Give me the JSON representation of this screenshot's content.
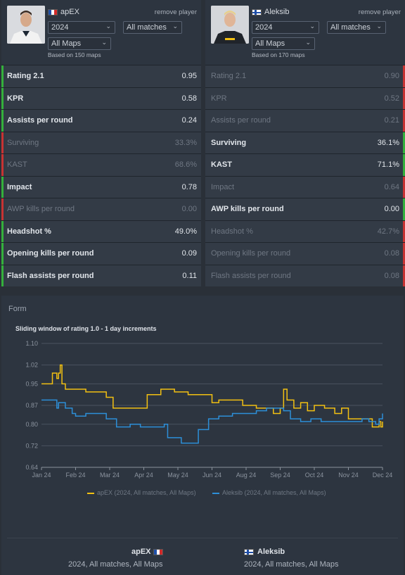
{
  "colors": {
    "win": "#34b03c",
    "lose": "#c73333",
    "series1": "#f2c012",
    "series2": "#2d8fd8"
  },
  "players": [
    {
      "name": "apEX",
      "flag": "france-flag",
      "remove": "remove player",
      "year": "2024",
      "matches": "All matches",
      "maps": "All Maps",
      "based": "Based on 150 maps",
      "stats": [
        {
          "label": "Rating 2.1",
          "value": "0.95",
          "win": true
        },
        {
          "label": "KPR",
          "value": "0.58",
          "win": true
        },
        {
          "label": "Assists per round",
          "value": "0.24",
          "win": true
        },
        {
          "label": "Surviving",
          "value": "33.3%",
          "win": false
        },
        {
          "label": "KAST",
          "value": "68.6%",
          "win": false
        },
        {
          "label": "Impact",
          "value": "0.78",
          "win": true
        },
        {
          "label": "AWP kills per round",
          "value": "0.00",
          "win": false
        },
        {
          "label": "Headshot %",
          "value": "49.0%",
          "win": true
        },
        {
          "label": "Opening kills per round",
          "value": "0.09",
          "win": true
        },
        {
          "label": "Flash assists per round",
          "value": "0.11",
          "win": true
        }
      ]
    },
    {
      "name": "Aleksib",
      "flag": "finland-flag",
      "remove": "remove player",
      "year": "2024",
      "matches": "All matches",
      "maps": "All Maps",
      "based": "Based on 170 maps",
      "stats": [
        {
          "label": "Rating 2.1",
          "value": "0.90",
          "win": false
        },
        {
          "label": "KPR",
          "value": "0.52",
          "win": false
        },
        {
          "label": "Assists per round",
          "value": "0.21",
          "win": false
        },
        {
          "label": "Surviving",
          "value": "36.1%",
          "win": true
        },
        {
          "label": "KAST",
          "value": "71.1%",
          "win": true
        },
        {
          "label": "Impact",
          "value": "0.64",
          "win": false
        },
        {
          "label": "AWP kills per round",
          "value": "0.00",
          "win": true
        },
        {
          "label": "Headshot %",
          "value": "42.7%",
          "win": false
        },
        {
          "label": "Opening kills per round",
          "value": "0.08",
          "win": false
        },
        {
          "label": "Flash assists per round",
          "value": "0.08",
          "win": false
        }
      ]
    }
  ],
  "form": {
    "title": "Form",
    "chart_title": "Sliding window of rating 1.0 - 1 day increments",
    "legend": [
      "apEX (2024, All matches, All Maps)",
      "Aleksib (2024, All matches, All Maps)"
    ],
    "footer": [
      {
        "name": "apEX",
        "sub": "2024, All matches, All Maps"
      },
      {
        "name": "Aleksib",
        "sub": "2024, All matches, All Maps"
      }
    ]
  },
  "chart_data": {
    "type": "line",
    "title": "Sliding window of rating 1.0 - 1 day increments",
    "xlabel": "",
    "ylabel": "",
    "x_ticks": [
      "Jan 24",
      "Feb 24",
      "Mar 24",
      "Apr 24",
      "May 24",
      "Jun 24",
      "Aug 24",
      "Sep 24",
      "Oct 24",
      "Nov 24",
      "Dec 24"
    ],
    "y_ticks": [
      "1.10",
      "1.02",
      "0.95",
      "0.87",
      "0.80",
      "0.72",
      "0.64"
    ],
    "ylim": [
      0.64,
      1.1
    ],
    "grid": true,
    "legend_position": "bottom",
    "series": [
      {
        "name": "apEX (2024, All matches, All Maps)",
        "points": [
          [
            0.0,
            0.95
          ],
          [
            0.3,
            0.95
          ],
          [
            0.32,
            0.99
          ],
          [
            0.4,
            0.99
          ],
          [
            0.45,
            0.97
          ],
          [
            0.5,
            0.99
          ],
          [
            0.55,
            1.02
          ],
          [
            0.6,
            0.95
          ],
          [
            0.7,
            0.93
          ],
          [
            1.0,
            0.93
          ],
          [
            1.3,
            0.92
          ],
          [
            1.7,
            0.92
          ],
          [
            1.9,
            0.9
          ],
          [
            2.1,
            0.86
          ],
          [
            2.6,
            0.86
          ],
          [
            3.0,
            0.86
          ],
          [
            3.1,
            0.91
          ],
          [
            3.5,
            0.93
          ],
          [
            3.9,
            0.92
          ],
          [
            4.3,
            0.91
          ],
          [
            4.7,
            0.91
          ],
          [
            5.0,
            0.88
          ],
          [
            5.2,
            0.89
          ],
          [
            5.5,
            0.89
          ],
          [
            5.9,
            0.87
          ],
          [
            6.0,
            0.87
          ],
          [
            6.3,
            0.86
          ],
          [
            6.6,
            0.86
          ],
          [
            6.8,
            0.84
          ],
          [
            7.0,
            0.86
          ],
          [
            7.1,
            0.93
          ],
          [
            7.2,
            0.89
          ],
          [
            7.4,
            0.86
          ],
          [
            7.6,
            0.88
          ],
          [
            7.8,
            0.85
          ],
          [
            8.0,
            0.87
          ],
          [
            8.3,
            0.86
          ],
          [
            8.5,
            0.86
          ],
          [
            8.6,
            0.84
          ],
          [
            8.8,
            0.86
          ],
          [
            9.0,
            0.82
          ],
          [
            9.6,
            0.82
          ],
          [
            9.7,
            0.79
          ],
          [
            9.9,
            0.81
          ],
          [
            9.95,
            0.79
          ],
          [
            10.0,
            0.81
          ]
        ]
      },
      {
        "name": "Aleksib (2024, All matches, All Maps)",
        "points": [
          [
            0.0,
            0.89
          ],
          [
            0.4,
            0.89
          ],
          [
            0.45,
            0.86
          ],
          [
            0.5,
            0.88
          ],
          [
            0.7,
            0.86
          ],
          [
            0.9,
            0.84
          ],
          [
            1.0,
            0.83
          ],
          [
            1.3,
            0.84
          ],
          [
            1.6,
            0.84
          ],
          [
            1.9,
            0.82
          ],
          [
            2.2,
            0.79
          ],
          [
            2.6,
            0.8
          ],
          [
            2.9,
            0.79
          ],
          [
            3.2,
            0.79
          ],
          [
            3.6,
            0.8
          ],
          [
            3.7,
            0.75
          ],
          [
            4.1,
            0.73
          ],
          [
            4.4,
            0.73
          ],
          [
            4.6,
            0.78
          ],
          [
            4.9,
            0.82
          ],
          [
            5.2,
            0.83
          ],
          [
            5.6,
            0.84
          ],
          [
            6.0,
            0.84
          ],
          [
            6.3,
            0.85
          ],
          [
            6.6,
            0.86
          ],
          [
            6.9,
            0.86
          ],
          [
            7.1,
            0.85
          ],
          [
            7.3,
            0.82
          ],
          [
            7.6,
            0.81
          ],
          [
            7.9,
            0.82
          ],
          [
            8.2,
            0.81
          ],
          [
            8.6,
            0.81
          ],
          [
            9.0,
            0.81
          ],
          [
            9.4,
            0.82
          ],
          [
            9.6,
            0.81
          ],
          [
            9.8,
            0.8
          ],
          [
            9.9,
            0.82
          ],
          [
            10.0,
            0.84
          ]
        ]
      }
    ]
  }
}
